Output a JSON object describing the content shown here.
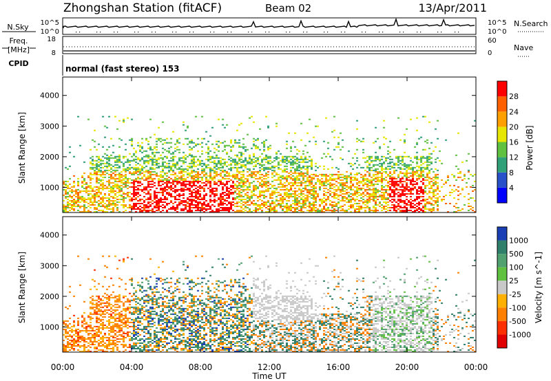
{
  "header": {
    "station": "Zhongshan Station (fitACF)",
    "beam": "Beam 02",
    "date": "13/Apr/2011"
  },
  "status_panels": {
    "nsky": {
      "label": "N.Sky",
      "left_ticks": [
        "10^5",
        "10^0"
      ],
      "right_label": "N.Search",
      "right_ticks": [
        "10^5",
        "10^0"
      ]
    },
    "freq": {
      "label_lines": [
        "Freq.",
        "[MHz]"
      ],
      "left_ticks": [
        "18",
        "8"
      ],
      "right_label": "Nave",
      "right_ticks": [
        "60",
        "0"
      ]
    },
    "cpid": {
      "label": "CPID",
      "mode": "normal (fast stereo) 153"
    }
  },
  "chart_data": [
    {
      "type": "heatmap",
      "panel": "power",
      "quantity": "Power",
      "xlabel": "Time UT",
      "ylabel": "Slant Range [km]",
      "x_ticks": [
        "00:00",
        "04:00",
        "08:00",
        "12:00",
        "16:00",
        "20:00",
        "00:00"
      ],
      "y_ticks": [
        1000,
        2000,
        3000,
        4000
      ],
      "xlim_hours": [
        0,
        24
      ],
      "ylim_km": [
        180,
        4600
      ],
      "colorbar": {
        "label": "Power [dB]",
        "ticks": [
          "4",
          "8",
          "12",
          "16",
          "20",
          "24",
          "28"
        ],
        "colors": [
          "#0000ff",
          "#2850c8",
          "#30a078",
          "#60c040",
          "#e6e600",
          "#ffa000",
          "#ff6000",
          "#ff0000"
        ],
        "range": [
          0,
          30
        ]
      }
    },
    {
      "type": "heatmap",
      "panel": "velocity",
      "quantity": "Velocity",
      "xlabel": "Time UT",
      "ylabel": "Slant Range [km]",
      "x_ticks": [
        "00:00",
        "04:00",
        "08:00",
        "12:00",
        "16:00",
        "20:00",
        "00:00"
      ],
      "y_ticks": [
        1000,
        2000,
        3000,
        4000
      ],
      "xlim_hours": [
        0,
        24
      ],
      "ylim_km": [
        180,
        4600
      ],
      "colorbar": {
        "label": "Velocity [m s^-1]",
        "ticks": [
          "1000",
          "500",
          "100",
          "25",
          "-25",
          "-100",
          "-500",
          "-1000"
        ],
        "colors": [
          "#1a3fb4",
          "#2f7f6a",
          "#50a070",
          "#60c040",
          "#c8c8c8",
          "#ffb000",
          "#ff8000",
          "#ff3000",
          "#e00000"
        ],
        "range": [
          -1000,
          1000
        ]
      }
    }
  ]
}
